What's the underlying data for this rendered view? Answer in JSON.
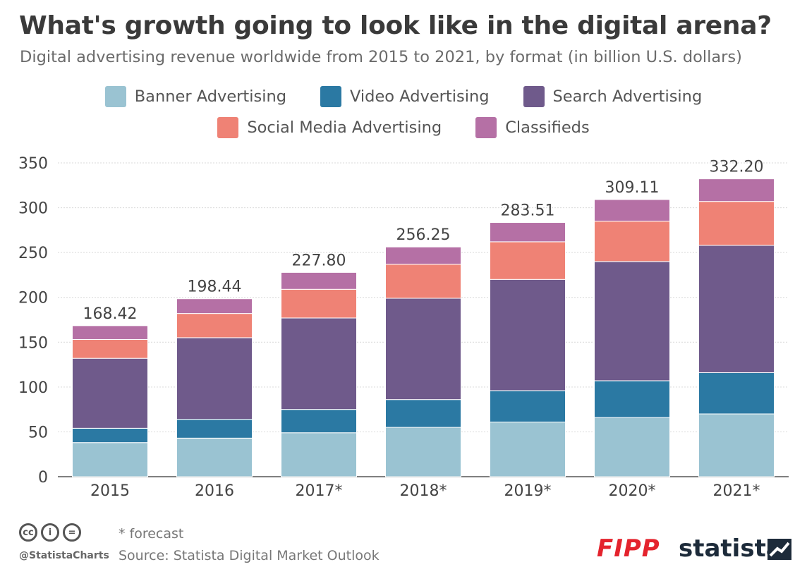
{
  "title": "What's growth going to look like in the digital arena?",
  "subtitle": "Digital advertising revenue worldwide from 2015 to 2021, by format (in billion U.S. dollars)",
  "legend": [
    {
      "label": "Banner Advertising",
      "color": "#9ac3d2"
    },
    {
      "label": "Video Advertising",
      "color": "#2b79a3"
    },
    {
      "label": "Search Advertising",
      "color": "#6f5a8b"
    },
    {
      "label": "Social Media Advertising",
      "color": "#ef8275"
    },
    {
      "label": "Classifieds",
      "color": "#b570a5"
    }
  ],
  "chart_data": {
    "type": "bar",
    "stacked": true,
    "categories": [
      "2015",
      "2016",
      "2017*",
      "2018*",
      "2019*",
      "2020*",
      "2021*"
    ],
    "series": [
      {
        "name": "Banner Advertising",
        "color": "#9ac3d2",
        "values": [
          38,
          43,
          49,
          55,
          61,
          66,
          70
        ]
      },
      {
        "name": "Video Advertising",
        "color": "#2b79a3",
        "values": [
          16,
          21,
          26,
          31,
          35,
          41,
          46
        ]
      },
      {
        "name": "Search Advertising",
        "color": "#6f5a8b",
        "values": [
          78,
          91,
          102,
          113,
          124,
          133,
          142
        ]
      },
      {
        "name": "Social Media Advertising",
        "color": "#ef8275",
        "values": [
          21,
          27,
          32,
          38,
          42,
          45,
          49
        ]
      },
      {
        "name": "Classifieds",
        "color": "#b570a5",
        "values": [
          15.42,
          16.44,
          18.8,
          19.25,
          21.51,
          24.11,
          25.2
        ]
      }
    ],
    "totals": [
      "168.42",
      "198.44",
      "227.80",
      "256.25",
      "283.51",
      "309.11",
      "332.20"
    ],
    "yticks": [
      "0",
      "50",
      "100",
      "150",
      "200",
      "250",
      "300",
      "350"
    ],
    "ylim": [
      0,
      350
    ],
    "grid": true,
    "legend_position": "top"
  },
  "footer": {
    "cc_icons": [
      "cc",
      "i",
      "="
    ],
    "handle": "@StatistaCharts",
    "forecast_note": "* forecast",
    "source": "Source: Statista Digital Market Outlook",
    "partner_logo": "FIPP",
    "brand_logo": "statista"
  }
}
